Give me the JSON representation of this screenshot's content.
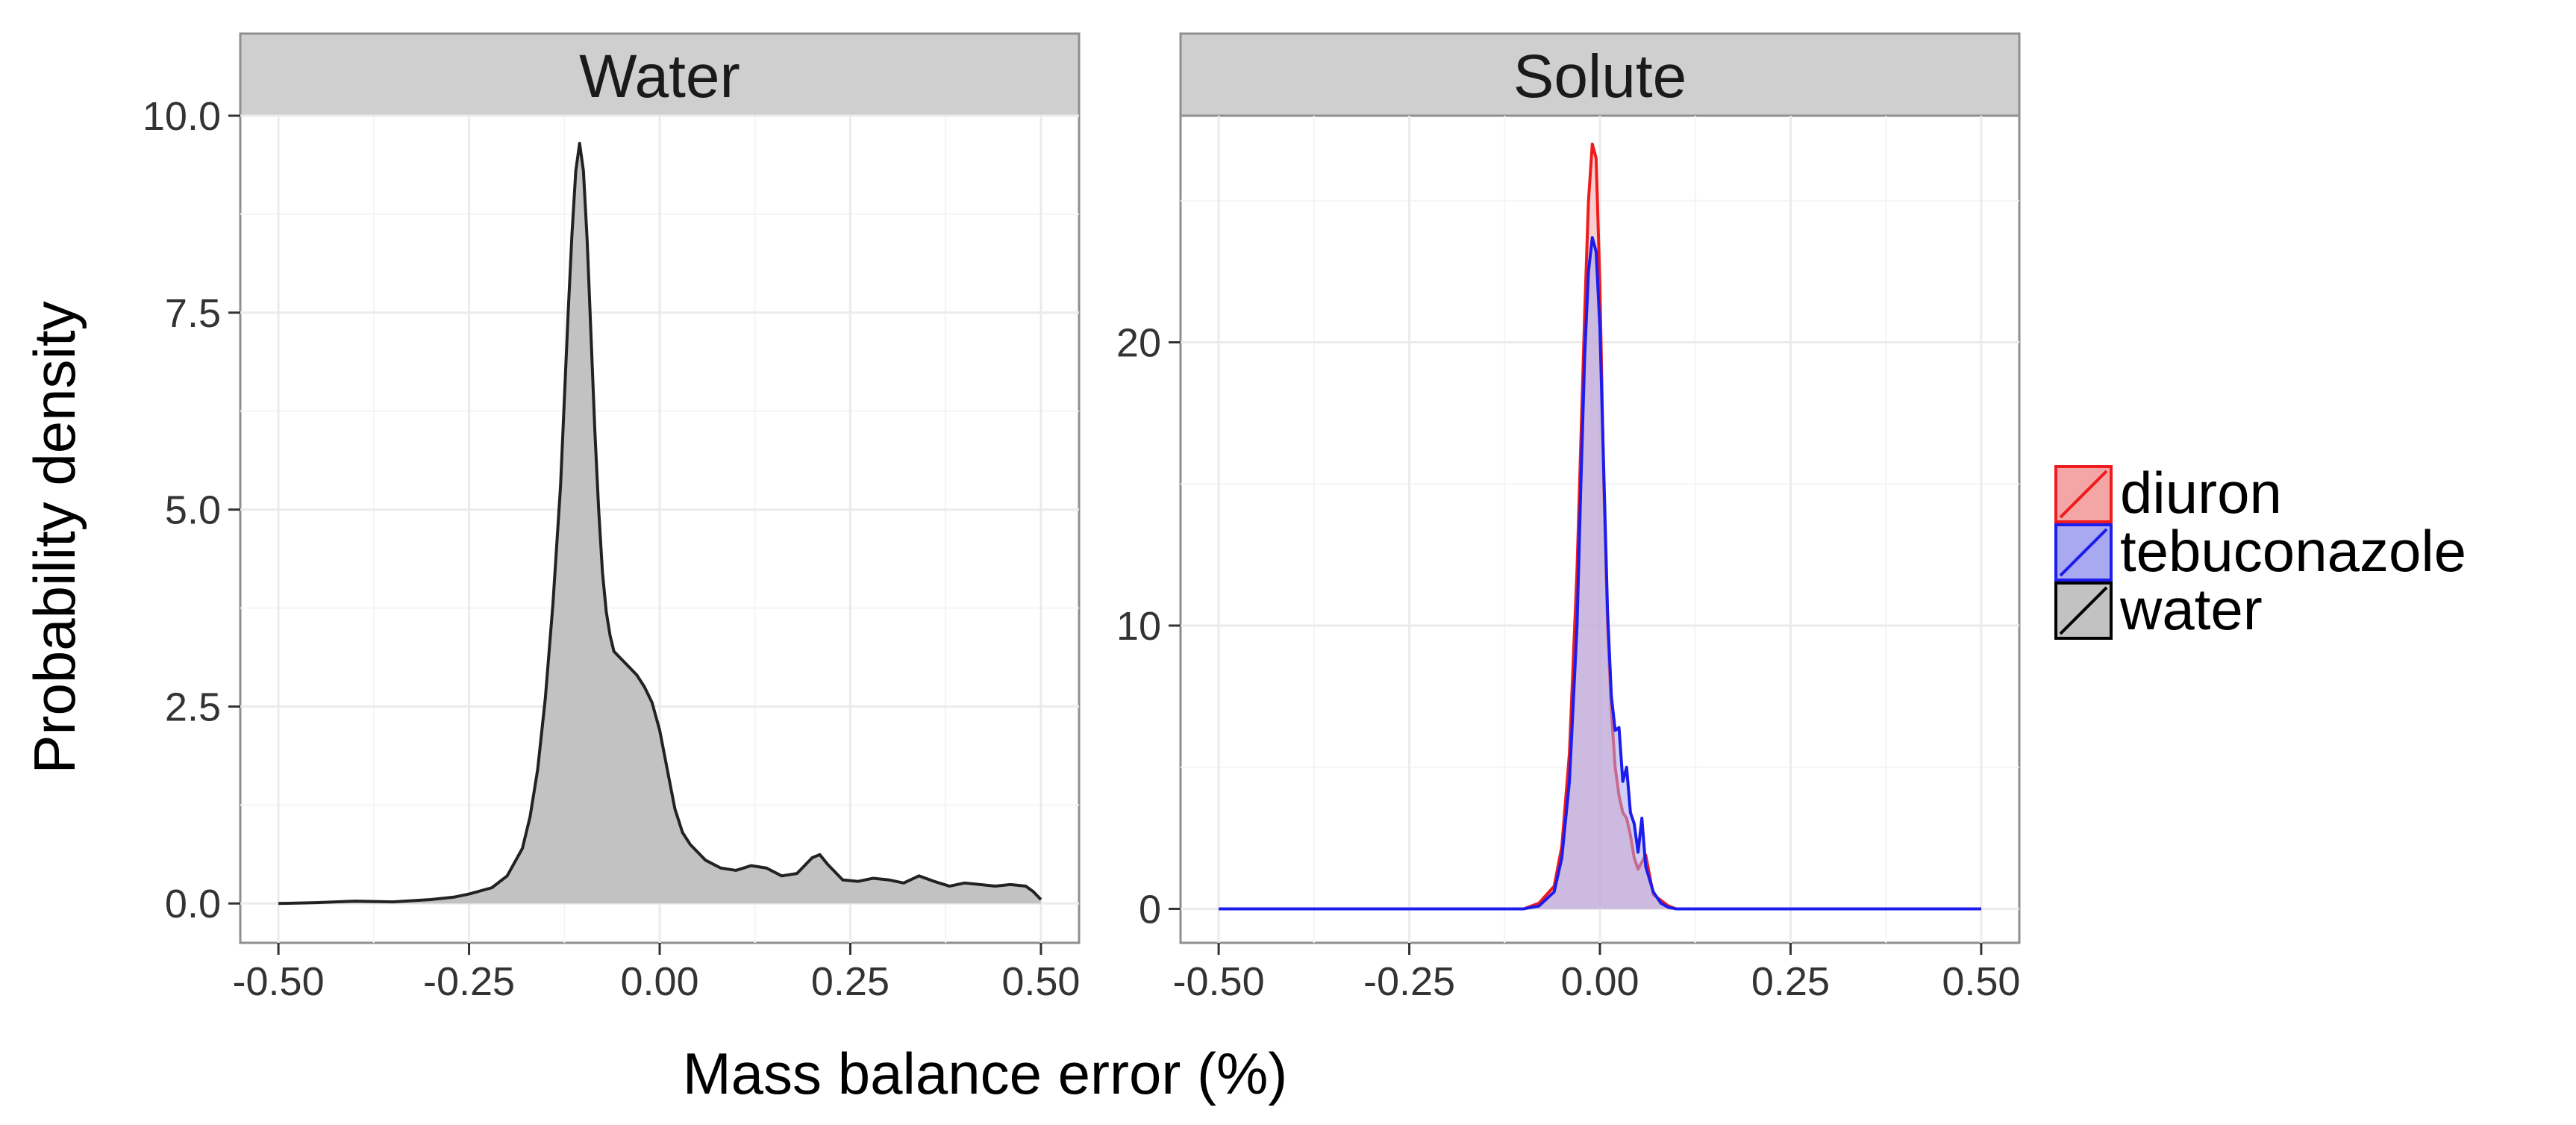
{
  "chart_data": [
    {
      "type": "area",
      "panel": "Water",
      "title": "Water",
      "xlabel": "Mass balance error (%)",
      "ylabel": "Probability density",
      "xlim": [
        -0.55,
        0.55
      ],
      "ylim": [
        -0.5,
        10.0
      ],
      "x_ticks": [
        -0.5,
        -0.25,
        0.0,
        0.25,
        0.5
      ],
      "x_tick_labels": [
        "-0.50",
        "-0.25",
        "0.00",
        "0.25",
        "0.50"
      ],
      "y_ticks": [
        0.0,
        2.5,
        5.0,
        7.5,
        10.0
      ],
      "y_tick_labels": [
        "0.0",
        "2.5",
        "5.0",
        "7.5",
        "10.0"
      ],
      "grid": true,
      "series": [
        {
          "name": "water",
          "fill": "#c2c2c2",
          "stroke": "#222222",
          "x": [
            -0.5,
            -0.45,
            -0.4,
            -0.35,
            -0.3,
            -0.27,
            -0.25,
            -0.22,
            -0.2,
            -0.18,
            -0.17,
            -0.16,
            -0.15,
            -0.14,
            -0.13,
            -0.125,
            -0.12,
            -0.115,
            -0.11,
            -0.105,
            -0.1,
            -0.095,
            -0.09,
            -0.085,
            -0.08,
            -0.075,
            -0.07,
            -0.065,
            -0.06,
            -0.05,
            -0.04,
            -0.03,
            -0.02,
            -0.01,
            0.0,
            0.01,
            0.02,
            0.03,
            0.04,
            0.05,
            0.06,
            0.08,
            0.1,
            0.12,
            0.14,
            0.16,
            0.18,
            0.2,
            0.21,
            0.22,
            0.24,
            0.26,
            0.28,
            0.3,
            0.32,
            0.34,
            0.36,
            0.38,
            0.4,
            0.42,
            0.44,
            0.46,
            0.48,
            0.49,
            0.5
          ],
          "y": [
            0.0,
            0.01,
            0.03,
            0.02,
            0.05,
            0.08,
            0.12,
            0.2,
            0.35,
            0.7,
            1.1,
            1.7,
            2.6,
            3.8,
            5.3,
            6.4,
            7.5,
            8.5,
            9.3,
            9.65,
            9.3,
            8.4,
            7.2,
            6.0,
            5.0,
            4.2,
            3.7,
            3.4,
            3.2,
            3.1,
            3.0,
            2.9,
            2.75,
            2.55,
            2.2,
            1.7,
            1.2,
            0.9,
            0.75,
            0.65,
            0.55,
            0.45,
            0.42,
            0.48,
            0.45,
            0.35,
            0.38,
            0.58,
            0.62,
            0.5,
            0.3,
            0.28,
            0.32,
            0.3,
            0.26,
            0.35,
            0.28,
            0.22,
            0.26,
            0.24,
            0.22,
            0.24,
            0.22,
            0.15,
            0.05
          ]
        }
      ]
    },
    {
      "type": "area",
      "panel": "Solute",
      "title": "Solute",
      "xlabel": "Mass balance error (%)",
      "ylabel": "Probability density",
      "xlim": [
        -0.55,
        0.55
      ],
      "ylim": [
        -1.2,
        28.0
      ],
      "x_ticks": [
        -0.5,
        -0.25,
        0.0,
        0.25,
        0.5
      ],
      "x_tick_labels": [
        "-0.50",
        "-0.25",
        "0.00",
        "0.25",
        "0.50"
      ],
      "y_ticks": [
        0,
        10,
        20
      ],
      "y_tick_labels": [
        "0",
        "10",
        "20"
      ],
      "grid": true,
      "series": [
        {
          "name": "diuron",
          "fill": "#f4a5a5",
          "stroke": "#ee1c1c",
          "x": [
            -0.5,
            -0.1,
            -0.08,
            -0.06,
            -0.05,
            -0.04,
            -0.03,
            -0.025,
            -0.02,
            -0.015,
            -0.01,
            -0.005,
            0.0,
            0.005,
            0.01,
            0.015,
            0.02,
            0.025,
            0.03,
            0.035,
            0.04,
            0.045,
            0.05,
            0.06,
            0.07,
            0.08,
            0.09,
            0.1,
            0.5
          ],
          "y": [
            0,
            0,
            0.2,
            0.8,
            2.2,
            5.5,
            12.0,
            16.5,
            21.0,
            25.0,
            27.0,
            26.5,
            22.0,
            15.0,
            10.0,
            7.0,
            5.0,
            4.0,
            3.4,
            3.2,
            2.6,
            1.8,
            1.4,
            1.9,
            0.5,
            0.3,
            0.1,
            0,
            0
          ]
        },
        {
          "name": "tebuconazole",
          "fill": "#a9a9ef",
          "stroke": "#1c1cee",
          "x": [
            -0.5,
            -0.1,
            -0.08,
            -0.06,
            -0.05,
            -0.04,
            -0.03,
            -0.025,
            -0.02,
            -0.015,
            -0.01,
            -0.005,
            0.0,
            0.005,
            0.01,
            0.015,
            0.02,
            0.025,
            0.03,
            0.035,
            0.04,
            0.045,
            0.05,
            0.055,
            0.06,
            0.07,
            0.08,
            0.09,
            0.1,
            0.5
          ],
          "y": [
            0,
            0,
            0.1,
            0.6,
            1.8,
            4.5,
            10.0,
            15.0,
            19.5,
            22.5,
            23.7,
            23.2,
            20.5,
            15.5,
            10.5,
            7.5,
            6.3,
            6.4,
            4.5,
            5.0,
            3.4,
            3.0,
            2.0,
            3.2,
            1.5,
            0.6,
            0.2,
            0.05,
            0,
            0
          ]
        }
      ]
    }
  ],
  "legend": {
    "placement": "right",
    "items": [
      {
        "label": "diuron",
        "fill": "#f4a5a5",
        "stroke": "#ee1c1c"
      },
      {
        "label": "tebuconazole",
        "fill": "#a9a9ef",
        "stroke": "#1c1cee"
      },
      {
        "label": "water",
        "fill": "#c2c2c2",
        "stroke": "#000000"
      }
    ]
  },
  "colors": {
    "panel_background": "#ffffff",
    "grid_major": "#ebebeb",
    "grid_minor": "#f5f5f5",
    "strip_fill": "#cfcfcf",
    "border": "#8f8f8f"
  }
}
